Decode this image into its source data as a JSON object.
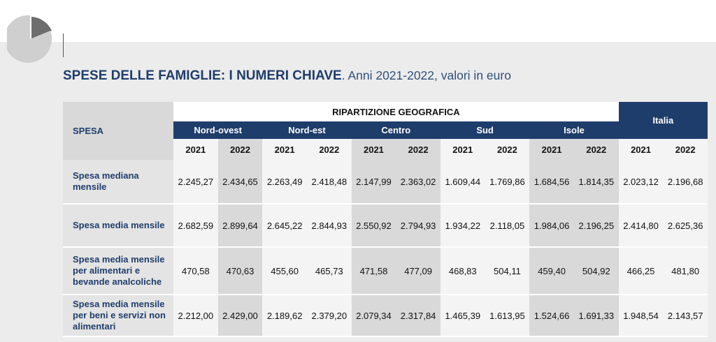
{
  "header": {
    "title": "SPESE DELLE FAMIGLIE: I NUMERI CHIAVE",
    "subtitle": ". Anni 2021-2022, valori in euro"
  },
  "table": {
    "row_header": "SPESA",
    "group_header": "RIPARTIZIONE GEOGRAFICA",
    "total_header": "Italia",
    "regions": [
      "Nord-ovest",
      "Nord-est",
      "Centro",
      "Sud",
      "Isole"
    ],
    "years": [
      "2021",
      "2022"
    ],
    "rows": [
      {
        "label": "Spesa mediana mensile",
        "values": [
          "2.245,27",
          "2.434,65",
          "2.263,49",
          "2.418,48",
          "2.147,99",
          "2.363,02",
          "1.609,44",
          "1.769,86",
          "1.684,56",
          "1.814,35",
          "2.023,12",
          "2.196,68"
        ]
      },
      {
        "label": "Spesa media mensile",
        "values": [
          "2.682,59",
          "2.899,64",
          "2.645,22",
          "2.844,93",
          "2.550,92",
          "2.794,93",
          "1.934,22",
          "2.118,05",
          "1.984,06",
          "2.196,25",
          "2.414,80",
          "2.625,36"
        ]
      },
      {
        "label": "Spesa media mensile per alimentari e bevande analcoliche",
        "values": [
          "470,58",
          "470,63",
          "455,60",
          "465,73",
          "471,58",
          "477,09",
          "468,83",
          "504,11",
          "459,40",
          "504,92",
          "466,25",
          "481,80"
        ]
      },
      {
        "label": "Spesa media mensile per beni e servizi non alimentari",
        "values": [
          "2.212,00",
          "2.429,00",
          "2.189,62",
          "2.379,20",
          "2.079,34",
          "2.317,84",
          "1.465,39",
          "1.613,95",
          "1.524,66",
          "1.691,33",
          "1.948,54",
          "2.143,57"
        ]
      }
    ]
  },
  "colors": {
    "navy": "#1f3d6b",
    "light_cell": "#f4f4f4",
    "dark_cell": "#d9d9d9",
    "background": "#ececec"
  }
}
